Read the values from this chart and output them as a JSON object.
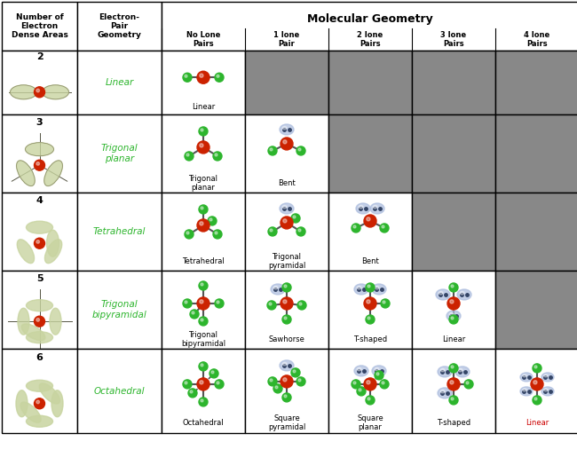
{
  "title": "Molecular Geometry",
  "col_headers": [
    "Number of\nElectron\nDense Areas",
    "Electron-\nPair\nGeometry",
    "No Lone\nPairs",
    "1 lone\nPair",
    "2 lone\nPairs",
    "3 lone\nPairs",
    "4 lone\nPairs"
  ],
  "rows": [
    {
      "num": "2",
      "ep_geom": "Linear",
      "cells": [
        {
          "label": "Linear",
          "active": true
        },
        {
          "label": "",
          "active": false
        },
        {
          "label": "",
          "active": false
        },
        {
          "label": "",
          "active": false
        },
        {
          "label": "",
          "active": false
        }
      ]
    },
    {
      "num": "3",
      "ep_geom": "Trigonal\nplanar",
      "cells": [
        {
          "label": "Trigonal\nplanar",
          "active": true
        },
        {
          "label": "Bent",
          "active": true
        },
        {
          "label": "",
          "active": false
        },
        {
          "label": "",
          "active": false
        },
        {
          "label": "",
          "active": false
        }
      ]
    },
    {
      "num": "4",
      "ep_geom": "Tetrahedral",
      "cells": [
        {
          "label": "Tetrahedral",
          "active": true
        },
        {
          "label": "Trigonal\npyramidal",
          "active": true
        },
        {
          "label": "Bent",
          "active": true
        },
        {
          "label": "",
          "active": false
        },
        {
          "label": "",
          "active": false
        }
      ]
    },
    {
      "num": "5",
      "ep_geom": "Trigonal\nbipyramidal",
      "cells": [
        {
          "label": "Trigonal\nbipyramidal",
          "active": true
        },
        {
          "label": "Sawhorse",
          "active": true
        },
        {
          "label": "T-shaped",
          "active": true
        },
        {
          "label": "Linear",
          "active": true
        },
        {
          "label": "",
          "active": false
        }
      ]
    },
    {
      "num": "6",
      "ep_geom": "Octahedral",
      "cells": [
        {
          "label": "Octahedral",
          "active": true
        },
        {
          "label": "Square\npyramidal",
          "active": true
        },
        {
          "label": "Square\nplanar",
          "active": true
        },
        {
          "label": "T-shaped",
          "active": true
        },
        {
          "label": "Linear",
          "active": true,
          "label_color": "#cc0000"
        }
      ]
    }
  ],
  "active_bg": "#ffffff",
  "inactive_bg": "#888888",
  "header_bg": "#ffffff",
  "border_color": "#000000",
  "green_atom": "#2db52d",
  "red_atom": "#cc2200",
  "blue_atom": "#aabbdd",
  "bond_color": "#555555"
}
